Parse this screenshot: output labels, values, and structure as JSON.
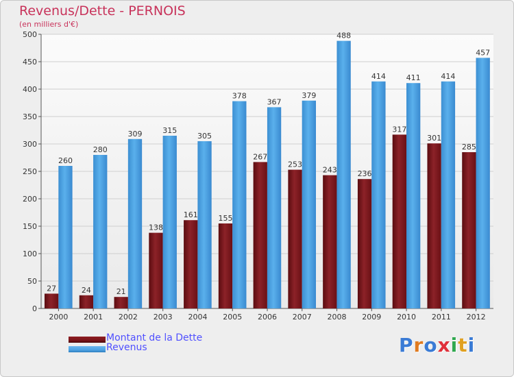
{
  "title": "Revenus/Dette - PERNOIS",
  "subtitle": "(en milliers d'€)",
  "colors": {
    "dette": "#7a1418",
    "revenus": "#4fa3e3",
    "title": "#c8325a",
    "legend_text": "#5050ff"
  },
  "legend": {
    "dette_label": "Montant de la Dette",
    "revenus_label": "Revenus"
  },
  "logo": {
    "text": "Proxiti",
    "letters": [
      "P",
      "r",
      "o",
      "x",
      "i",
      "t",
      "i"
    ],
    "colors": [
      "#3a7bd5",
      "#e07b20",
      "#3a7bd5",
      "#e0303a",
      "#2fa84f",
      "#e0a020",
      "#3a7bd5"
    ]
  },
  "chart_data": {
    "type": "bar",
    "categories": [
      "2000",
      "2001",
      "2002",
      "2003",
      "2004",
      "2005",
      "2006",
      "2007",
      "2008",
      "2009",
      "2010",
      "2011",
      "2012"
    ],
    "series": [
      {
        "name": "Montant de la Dette",
        "values": [
          27,
          24,
          21,
          138,
          161,
          155,
          267,
          253,
          243,
          236,
          317,
          301,
          285
        ]
      },
      {
        "name": "Revenus",
        "values": [
          260,
          280,
          309,
          315,
          305,
          378,
          367,
          379,
          488,
          414,
          411,
          414,
          457
        ]
      }
    ],
    "ylim": [
      0,
      500
    ],
    "yticks": [
      0,
      50,
      100,
      150,
      200,
      250,
      300,
      350,
      400,
      450,
      500
    ],
    "grid": true,
    "legend_position": "bottom-left"
  }
}
